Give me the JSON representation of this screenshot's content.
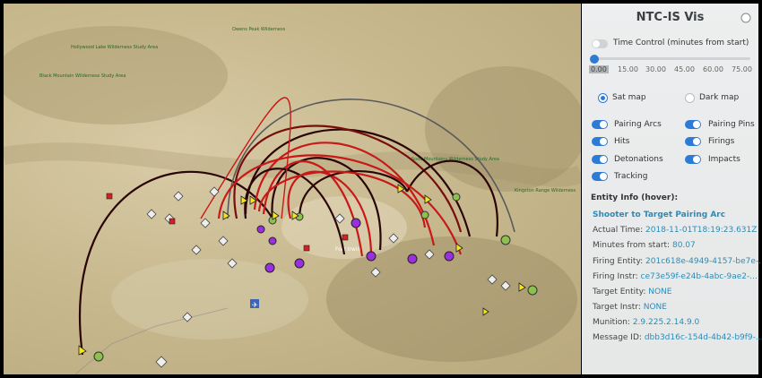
{
  "panel": {
    "title": "NTC-IS Vis",
    "time_control": {
      "label": "Time Control (minutes from start)",
      "enabled": false,
      "ticks": [
        "0.00",
        "15.00",
        "30.00",
        "45.00",
        "60.00",
        "75.00"
      ],
      "value": 0
    },
    "basemap": {
      "sat_label": "Sat map",
      "dark_label": "Dark map",
      "selected": "sat"
    },
    "layers": [
      {
        "key": "pairing_arcs",
        "label": "Pairing Arcs",
        "on": true
      },
      {
        "key": "pairing_pins",
        "label": "Pairing Pins",
        "on": true
      },
      {
        "key": "hits",
        "label": "Hits",
        "on": true
      },
      {
        "key": "firings",
        "label": "Firings",
        "on": true
      },
      {
        "key": "detonations",
        "label": "Detonations",
        "on": true
      },
      {
        "key": "impacts",
        "label": "Impacts",
        "on": true
      },
      {
        "key": "tracking",
        "label": "Tracking",
        "on": true
      }
    ],
    "entity_info": {
      "heading": "Entity Info (hover):",
      "title": "Shooter to Target Pairing Arc",
      "fields": [
        {
          "key": "Actual Time:",
          "value": "2018-11-01T18:19:23.631Z"
        },
        {
          "key": "Minutes from start:",
          "value": "80.07"
        },
        {
          "key": "Firing Entity:",
          "value": "201c618e-4949-4157-be7e-..."
        },
        {
          "key": "Firing Instr:",
          "value": "ce73e59f-e24b-4abc-9ae2-..."
        },
        {
          "key": "Target Entity:",
          "value": "NONE"
        },
        {
          "key": "Target Instr:",
          "value": "NONE"
        },
        {
          "key": "Munition:",
          "value": "2.9.225.2.14.9.0"
        },
        {
          "key": "Message ID:",
          "value": "dbb3d16c-154d-4b42-b9f9-..."
        }
      ]
    }
  },
  "map": {
    "labels": [
      "Hollywood Lake Wilderness Study Area",
      "Black Mountain Wilderness Study Area",
      "Owens Peak Wilderness",
      "Soda Mountains Wilderness Study Area",
      "Kingston Range Wilderness",
      "Fort Irwin"
    ],
    "colors": {
      "arc_dark": "#2a0505",
      "arc_red": "#c81818",
      "arc_gray": "#6b6b6b",
      "blue_force": "#9b2fe0",
      "opfor": "#8cc14f",
      "yellow": "#f4e51e"
    }
  }
}
